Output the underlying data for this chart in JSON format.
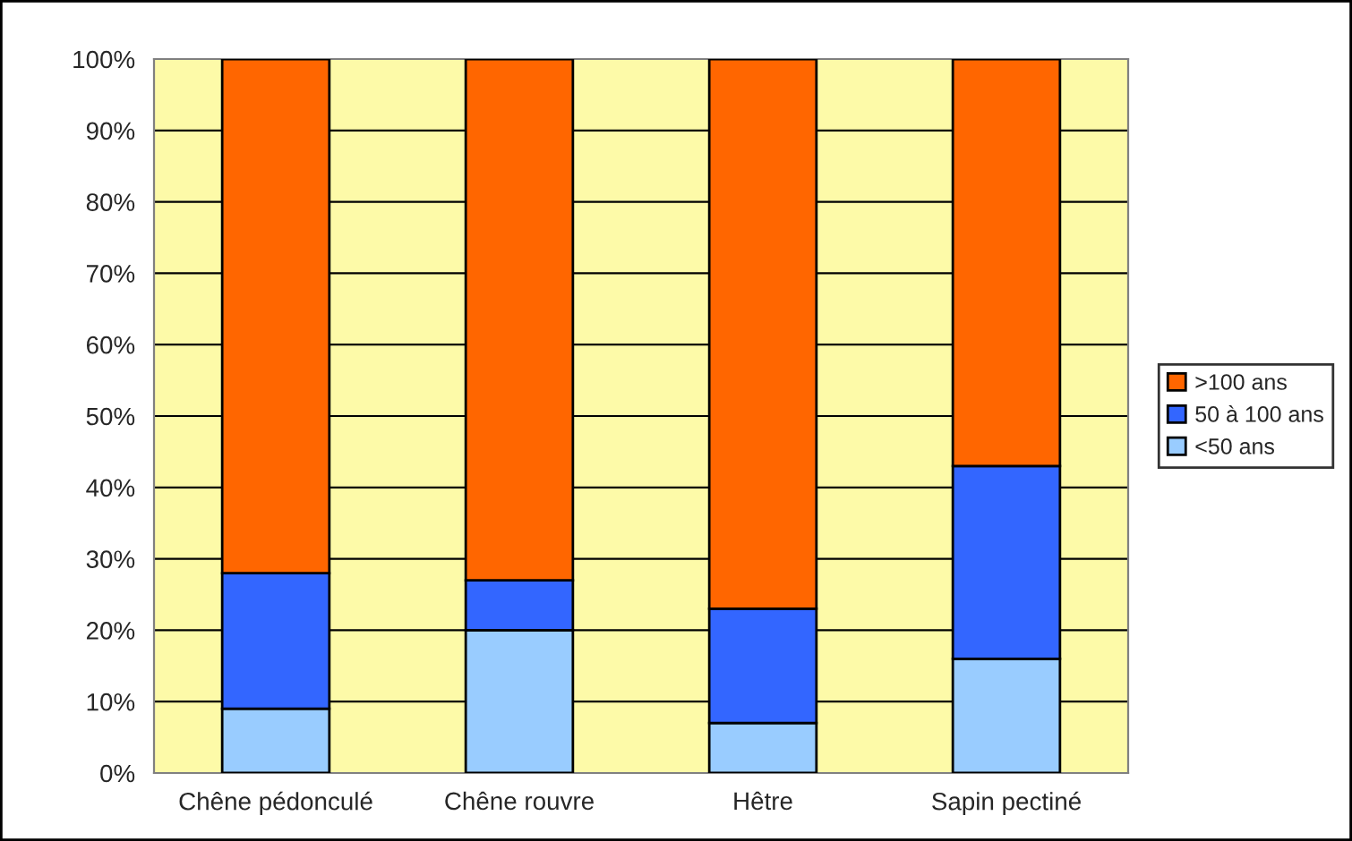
{
  "chart_data": {
    "type": "bar",
    "stacked": true,
    "categories": [
      "Chêne pédonculé",
      "Chêne rouvre",
      "Hêtre",
      "Sapin pectiné"
    ],
    "series": [
      {
        "name": "<50 ans",
        "color": "#99ccff",
        "values": [
          9,
          20,
          7,
          16
        ]
      },
      {
        "name": "50 à 100 ans",
        "color": "#3366ff",
        "values": [
          19,
          7,
          16,
          27
        ]
      },
      {
        "name": ">100 ans",
        "color": "#ff6600",
        "values": [
          72,
          73,
          77,
          57
        ]
      }
    ],
    "ylim": [
      0,
      100
    ],
    "yticks": [
      {
        "value": 0,
        "label": "0%"
      },
      {
        "value": 10,
        "label": "10%"
      },
      {
        "value": 20,
        "label": "20%"
      },
      {
        "value": 30,
        "label": "30%"
      },
      {
        "value": 40,
        "label": "40%"
      },
      {
        "value": 50,
        "label": "50%"
      },
      {
        "value": 60,
        "label": "60%"
      },
      {
        "value": 70,
        "label": "70%"
      },
      {
        "value": 80,
        "label": "80%"
      },
      {
        "value": 90,
        "label": "90%"
      },
      {
        "value": 100,
        "label": "100%"
      }
    ],
    "grid": "y",
    "legend": "right"
  }
}
